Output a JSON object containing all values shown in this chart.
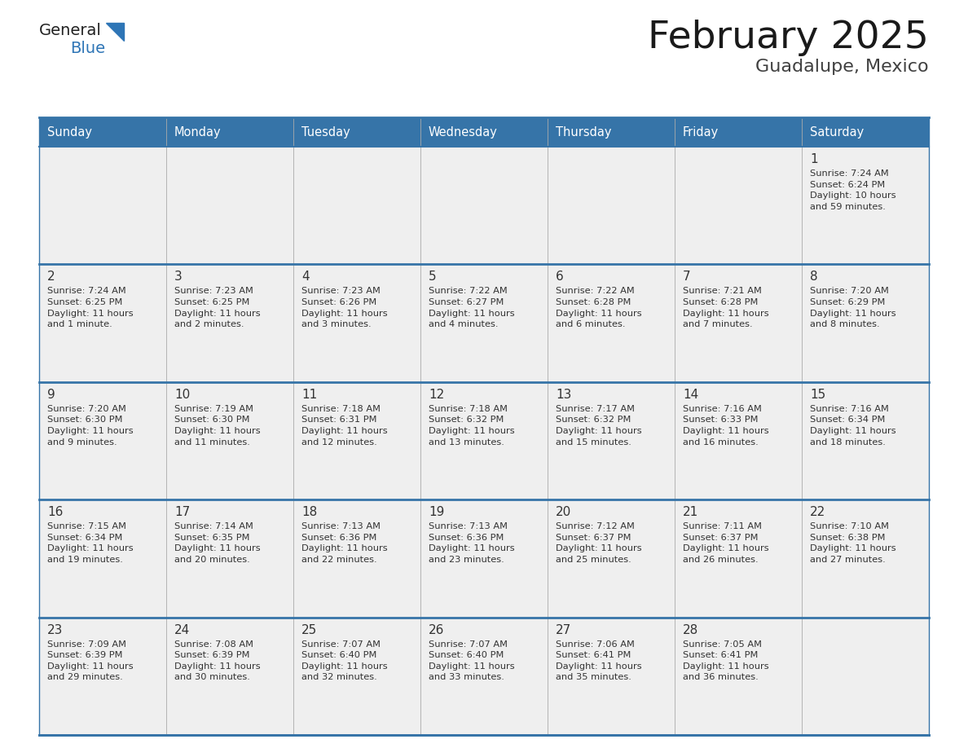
{
  "title": "February 2025",
  "subtitle": "Guadalupe, Mexico",
  "header_bg": "#3674a8",
  "header_text_color": "#FFFFFF",
  "cell_bg": "#EFEFEF",
  "border_color": "#3674a8",
  "cell_border_color": "#CCCCCC",
  "day_headers": [
    "Sunday",
    "Monday",
    "Tuesday",
    "Wednesday",
    "Thursday",
    "Friday",
    "Saturday"
  ],
  "title_color": "#1a1a1a",
  "subtitle_color": "#404040",
  "day_num_color": "#333333",
  "cell_text_color": "#333333",
  "logo_general_color": "#222222",
  "logo_blue_color": "#2E75B6",
  "weeks": [
    [
      {
        "day": null,
        "info": null
      },
      {
        "day": null,
        "info": null
      },
      {
        "day": null,
        "info": null
      },
      {
        "day": null,
        "info": null
      },
      {
        "day": null,
        "info": null
      },
      {
        "day": null,
        "info": null
      },
      {
        "day": 1,
        "info": "Sunrise: 7:24 AM\nSunset: 6:24 PM\nDaylight: 10 hours\nand 59 minutes."
      }
    ],
    [
      {
        "day": 2,
        "info": "Sunrise: 7:24 AM\nSunset: 6:25 PM\nDaylight: 11 hours\nand 1 minute."
      },
      {
        "day": 3,
        "info": "Sunrise: 7:23 AM\nSunset: 6:25 PM\nDaylight: 11 hours\nand 2 minutes."
      },
      {
        "day": 4,
        "info": "Sunrise: 7:23 AM\nSunset: 6:26 PM\nDaylight: 11 hours\nand 3 minutes."
      },
      {
        "day": 5,
        "info": "Sunrise: 7:22 AM\nSunset: 6:27 PM\nDaylight: 11 hours\nand 4 minutes."
      },
      {
        "day": 6,
        "info": "Sunrise: 7:22 AM\nSunset: 6:28 PM\nDaylight: 11 hours\nand 6 minutes."
      },
      {
        "day": 7,
        "info": "Sunrise: 7:21 AM\nSunset: 6:28 PM\nDaylight: 11 hours\nand 7 minutes."
      },
      {
        "day": 8,
        "info": "Sunrise: 7:20 AM\nSunset: 6:29 PM\nDaylight: 11 hours\nand 8 minutes."
      }
    ],
    [
      {
        "day": 9,
        "info": "Sunrise: 7:20 AM\nSunset: 6:30 PM\nDaylight: 11 hours\nand 9 minutes."
      },
      {
        "day": 10,
        "info": "Sunrise: 7:19 AM\nSunset: 6:30 PM\nDaylight: 11 hours\nand 11 minutes."
      },
      {
        "day": 11,
        "info": "Sunrise: 7:18 AM\nSunset: 6:31 PM\nDaylight: 11 hours\nand 12 minutes."
      },
      {
        "day": 12,
        "info": "Sunrise: 7:18 AM\nSunset: 6:32 PM\nDaylight: 11 hours\nand 13 minutes."
      },
      {
        "day": 13,
        "info": "Sunrise: 7:17 AM\nSunset: 6:32 PM\nDaylight: 11 hours\nand 15 minutes."
      },
      {
        "day": 14,
        "info": "Sunrise: 7:16 AM\nSunset: 6:33 PM\nDaylight: 11 hours\nand 16 minutes."
      },
      {
        "day": 15,
        "info": "Sunrise: 7:16 AM\nSunset: 6:34 PM\nDaylight: 11 hours\nand 18 minutes."
      }
    ],
    [
      {
        "day": 16,
        "info": "Sunrise: 7:15 AM\nSunset: 6:34 PM\nDaylight: 11 hours\nand 19 minutes."
      },
      {
        "day": 17,
        "info": "Sunrise: 7:14 AM\nSunset: 6:35 PM\nDaylight: 11 hours\nand 20 minutes."
      },
      {
        "day": 18,
        "info": "Sunrise: 7:13 AM\nSunset: 6:36 PM\nDaylight: 11 hours\nand 22 minutes."
      },
      {
        "day": 19,
        "info": "Sunrise: 7:13 AM\nSunset: 6:36 PM\nDaylight: 11 hours\nand 23 minutes."
      },
      {
        "day": 20,
        "info": "Sunrise: 7:12 AM\nSunset: 6:37 PM\nDaylight: 11 hours\nand 25 minutes."
      },
      {
        "day": 21,
        "info": "Sunrise: 7:11 AM\nSunset: 6:37 PM\nDaylight: 11 hours\nand 26 minutes."
      },
      {
        "day": 22,
        "info": "Sunrise: 7:10 AM\nSunset: 6:38 PM\nDaylight: 11 hours\nand 27 minutes."
      }
    ],
    [
      {
        "day": 23,
        "info": "Sunrise: 7:09 AM\nSunset: 6:39 PM\nDaylight: 11 hours\nand 29 minutes."
      },
      {
        "day": 24,
        "info": "Sunrise: 7:08 AM\nSunset: 6:39 PM\nDaylight: 11 hours\nand 30 minutes."
      },
      {
        "day": 25,
        "info": "Sunrise: 7:07 AM\nSunset: 6:40 PM\nDaylight: 11 hours\nand 32 minutes."
      },
      {
        "day": 26,
        "info": "Sunrise: 7:07 AM\nSunset: 6:40 PM\nDaylight: 11 hours\nand 33 minutes."
      },
      {
        "day": 27,
        "info": "Sunrise: 7:06 AM\nSunset: 6:41 PM\nDaylight: 11 hours\nand 35 minutes."
      },
      {
        "day": 28,
        "info": "Sunrise: 7:05 AM\nSunset: 6:41 PM\nDaylight: 11 hours\nand 36 minutes."
      },
      {
        "day": null,
        "info": null
      }
    ]
  ]
}
